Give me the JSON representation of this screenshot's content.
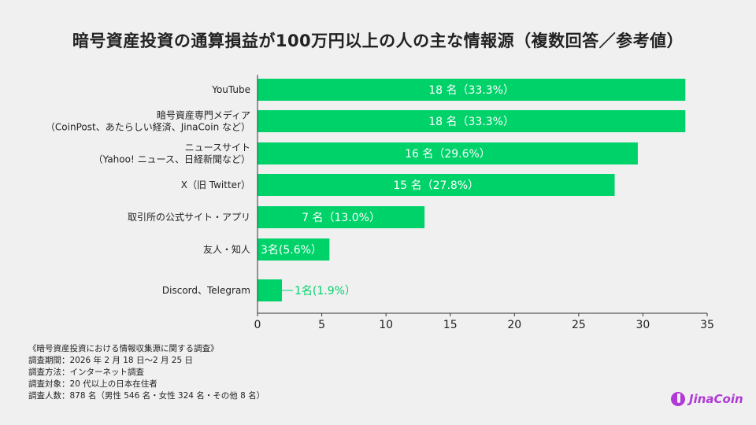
{
  "chart_data": {
    "type": "bar",
    "orientation": "horizontal",
    "title": "暗号資産投資の通算損益が100万円以上の人の主な情報源（複数回答／参考値）",
    "categories": [
      [
        "YouTube"
      ],
      [
        "暗号資産専門メディア",
        "（CoinPost、あたらしい経済、JinaCoin など）"
      ],
      [
        "ニュースサイト",
        "（Yahoo! ニュース、日経新聞など）"
      ],
      [
        "X（旧 Twitter）"
      ],
      [
        "取引所の公式サイト・アプリ"
      ],
      [
        "友人・知人"
      ],
      [
        "Discord、Telegram"
      ]
    ],
    "values": [
      33.3,
      33.3,
      29.6,
      27.8,
      13.0,
      5.6,
      1.9
    ],
    "counts": [
      18,
      18,
      16,
      15,
      7,
      3,
      1
    ],
    "data_labels": [
      "18 名（33.3%）",
      "18 名（33.3%）",
      "16 名（29.6%）",
      "15 名（27.8%）",
      "7 名（13.0%）",
      "3名(5.6%）",
      "1名(1.9%）"
    ],
    "xlim": [
      0,
      35
    ],
    "xticks": [
      "0",
      "5",
      "10",
      "15",
      "20",
      "25",
      "30",
      "35"
    ],
    "bar_color": "#00d26a",
    "grid": false
  },
  "notes": [
    "《暗号資産投資における情報収集源に関する調査》",
    "調査期間：2026 年 2 月 18 日〜2 月 25 日",
    "調査方法：インターネット調査",
    "調査対象：20 代以上の日本在住者",
    "調査人数：878 名（男性 546 名・女性 324 名・その他 8 名）"
  ],
  "logo": {
    "text": "JinaCoin",
    "color": "#b03ad6"
  }
}
